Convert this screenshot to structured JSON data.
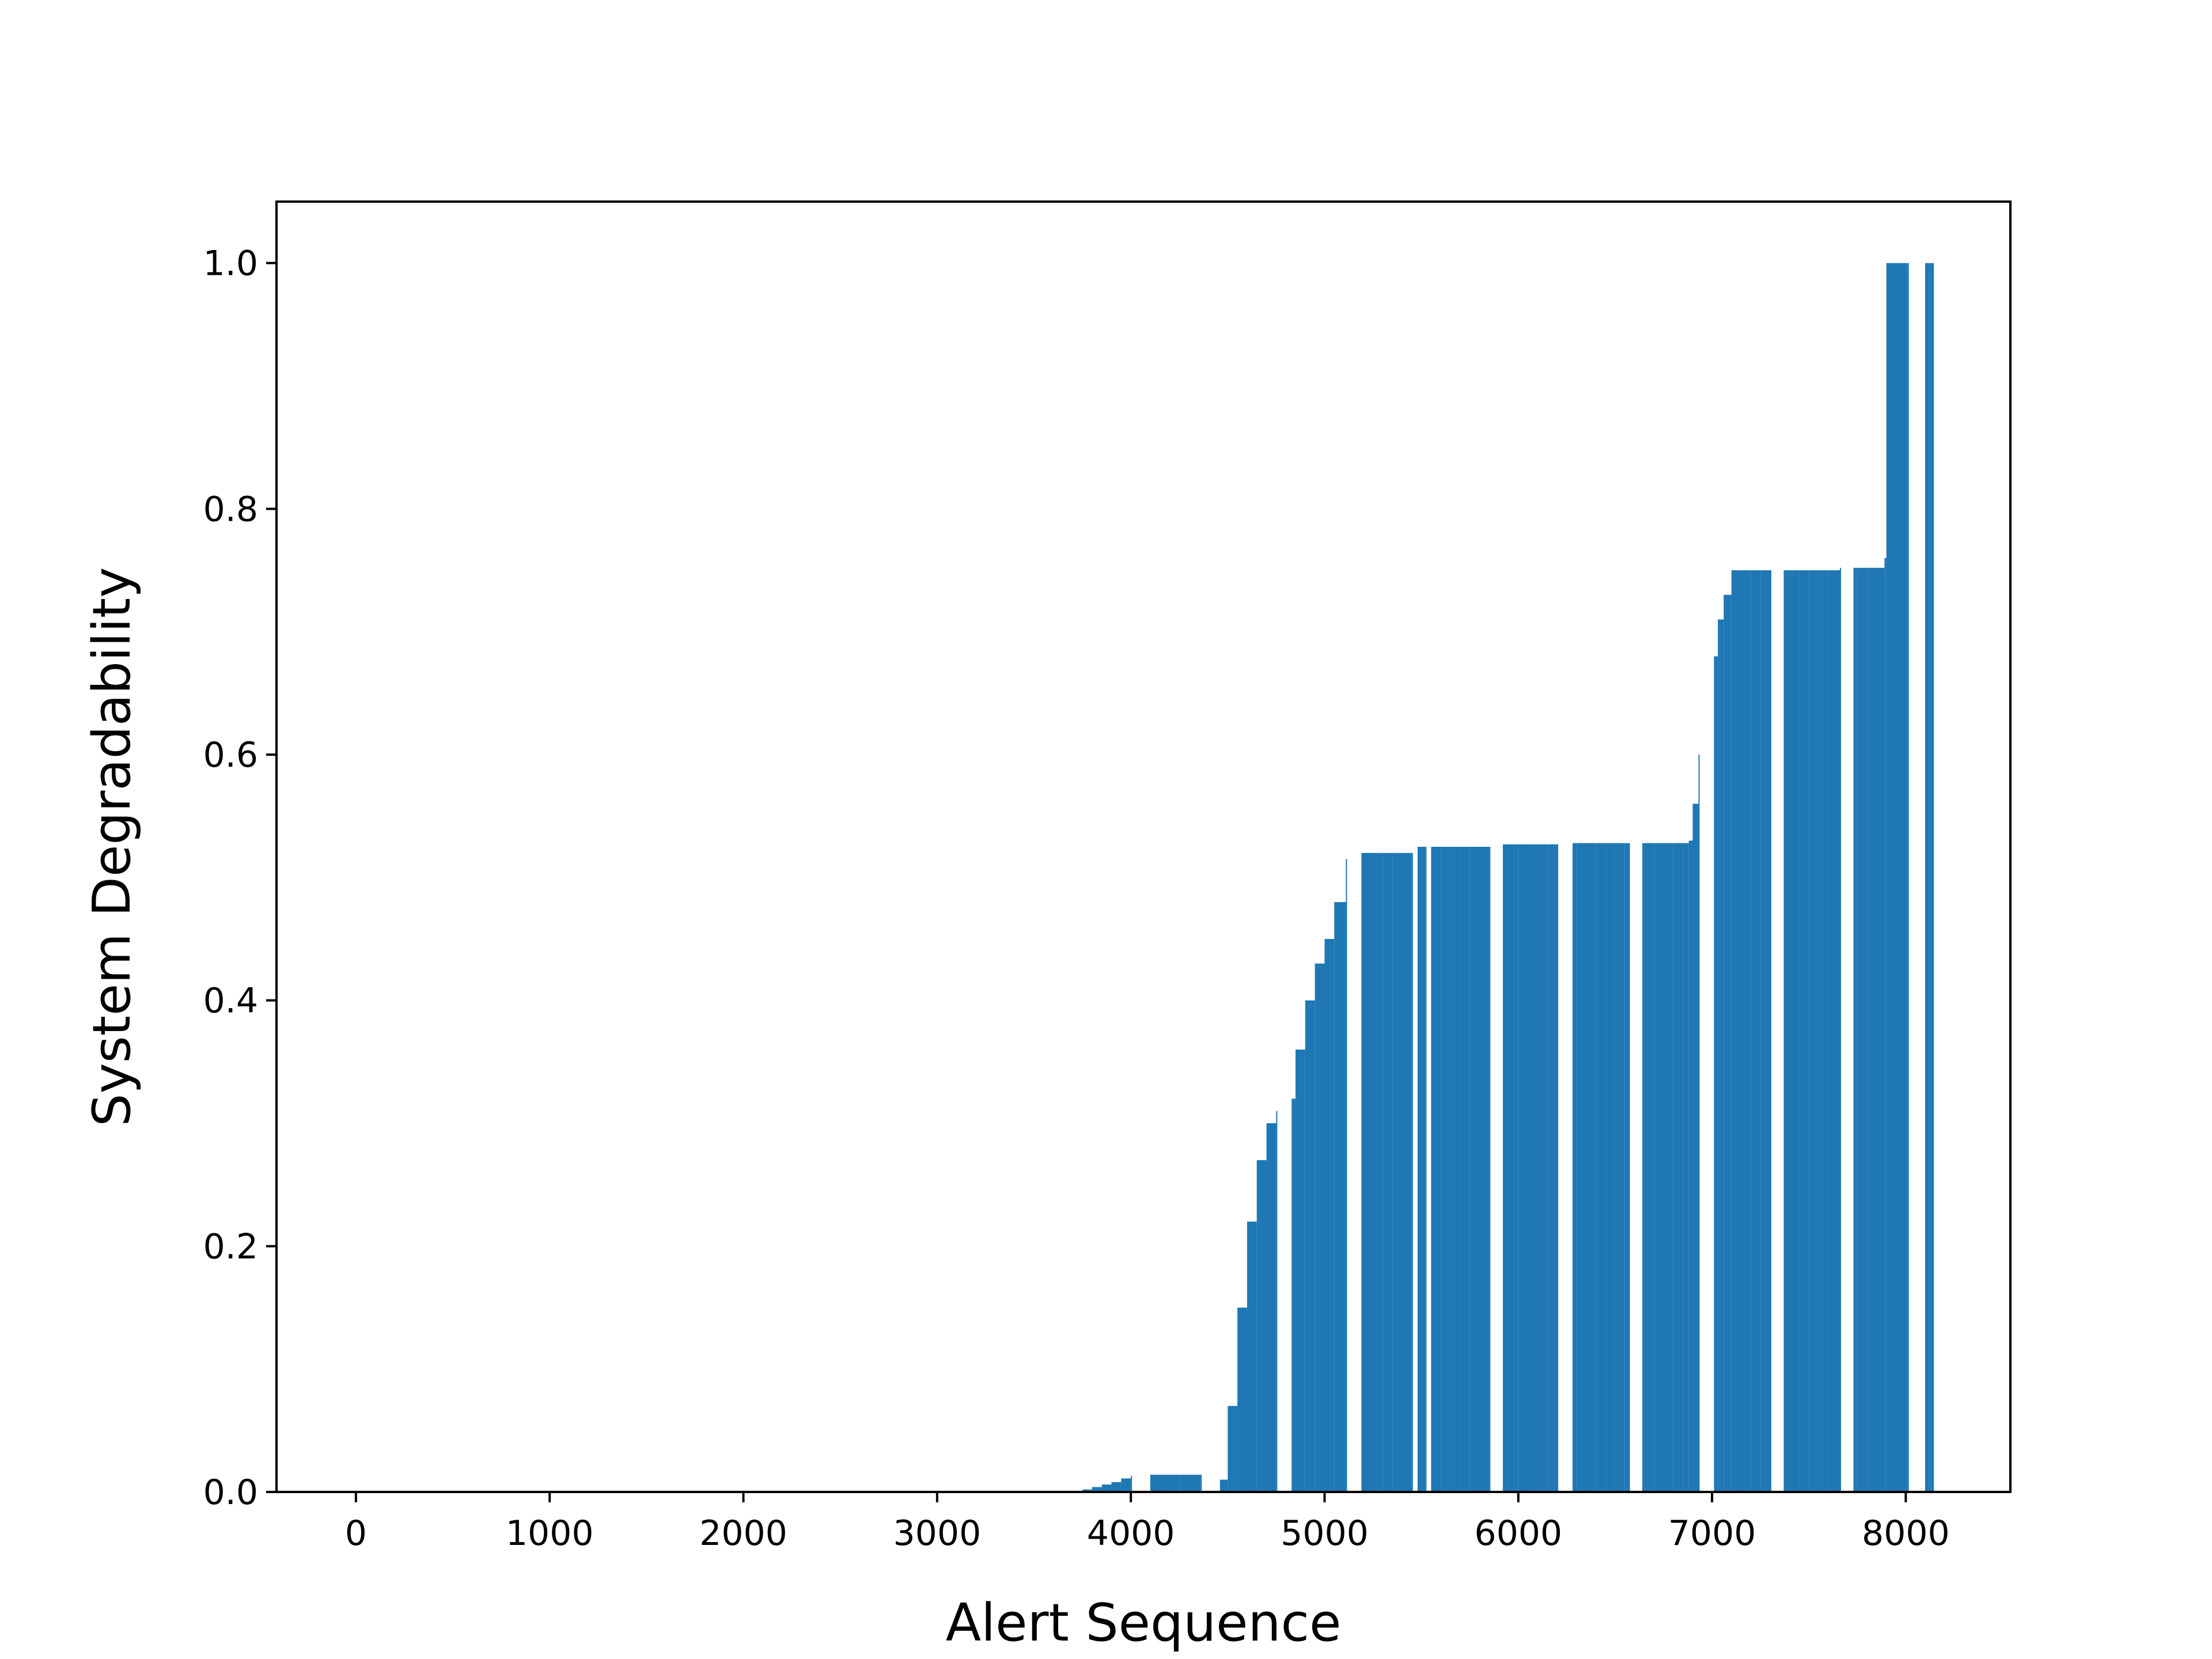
{
  "chart_data": {
    "type": "area",
    "title": "",
    "xlabel": "Alert Sequence",
    "ylabel": "System Degradability",
    "xlim": [
      -410,
      8540
    ],
    "ylim": [
      0.0,
      1.05
    ],
    "x_ticks": [
      0,
      1000,
      2000,
      3000,
      4000,
      5000,
      6000,
      7000,
      8000
    ],
    "x_tick_labels": [
      "0",
      "1000",
      "2000",
      "3000",
      "4000",
      "5000",
      "6000",
      "7000",
      "8000"
    ],
    "y_ticks": [
      0.0,
      0.2,
      0.4,
      0.6,
      0.8,
      1.0
    ],
    "y_tick_labels": [
      "0.0",
      "0.2",
      "0.4",
      "0.6",
      "0.8",
      "1.0"
    ],
    "grid": false,
    "legend": "none",
    "color": "#1f77b4",
    "series": [
      {
        "x": [
          0,
          3700,
          3750,
          3800,
          3850,
          3900,
          3950,
          4000,
          4005,
          4100,
          4150,
          4200,
          4250,
          4300,
          4360,
          4365,
          4460,
          4500,
          4550,
          4600,
          4650,
          4700,
          4750,
          4755,
          4830,
          4850,
          4900,
          4950,
          5000,
          5050,
          5110,
          5115,
          5190,
          5250,
          5300,
          5350,
          5400,
          5450,
          5455,
          5480,
          5520,
          5525,
          5550,
          5600,
          5650,
          5700,
          5750,
          5800,
          5850,
          5855,
          5920,
          5950,
          6000,
          6050,
          6100,
          6150,
          6200,
          6205,
          6280,
          6300,
          6350,
          6400,
          6450,
          6500,
          6550,
          6570,
          6575,
          6640,
          6650,
          6700,
          6750,
          6800,
          6850,
          6880,
          6900,
          6930,
          6935,
          7010,
          7030,
          7060,
          7100,
          7150,
          7200,
          7250,
          7300,
          7305,
          7370,
          7400,
          7450,
          7500,
          7550,
          7600,
          7660,
          7665,
          7730,
          7750,
          7800,
          7850,
          7890,
          7900,
          7950,
          8000,
          8010,
          8015,
          8100,
          8120,
          8130
        ],
        "values": [
          0,
          0,
          0.002,
          0.004,
          0.006,
          0.008,
          0.011,
          0.013,
          0,
          0.014,
          0.014,
          0.014,
          0.014,
          0.014,
          0.014,
          0,
          0.01,
          0.07,
          0.15,
          0.22,
          0.27,
          0.3,
          0.31,
          0,
          0.32,
          0.36,
          0.4,
          0.43,
          0.45,
          0.48,
          0.515,
          0,
          0.52,
          0.52,
          0.52,
          0.52,
          0.52,
          0.52,
          0,
          0.525,
          0.525,
          0,
          0.525,
          0.525,
          0.525,
          0.525,
          0.525,
          0.525,
          0.525,
          0,
          0.527,
          0.527,
          0.527,
          0.527,
          0.527,
          0.527,
          0.527,
          0,
          0.528,
          0.528,
          0.528,
          0.528,
          0.528,
          0.528,
          0.528,
          0.528,
          0,
          0.528,
          0.528,
          0.528,
          0.528,
          0.528,
          0.528,
          0.53,
          0.56,
          0.6,
          0,
          0.68,
          0.71,
          0.73,
          0.75,
          0.75,
          0.75,
          0.75,
          0.75,
          0,
          0.75,
          0.75,
          0.75,
          0.75,
          0.75,
          0.75,
          0.752,
          0,
          0.752,
          0.752,
          0.752,
          0.752,
          0.76,
          1.0,
          1.0,
          1.0,
          1.0,
          0,
          1.0,
          1.0,
          1.0
        ]
      }
    ]
  }
}
